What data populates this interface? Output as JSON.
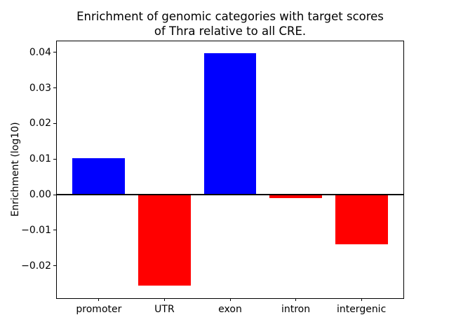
{
  "chart_data": {
    "type": "bar",
    "title": "Enrichment of genomic categories with target scores\nof Thra relative to all CRE.",
    "ylabel": "Enrichment (log10)",
    "xlabel": "",
    "categories": [
      "promoter",
      "UTR",
      "exon",
      "intron",
      "intergenic"
    ],
    "values": [
      0.0103,
      -0.0256,
      0.0398,
      -0.001,
      -0.0139
    ],
    "positive_color": "#0000ff",
    "negative_color": "#ff0000",
    "yticks": [
      0.04,
      0.03,
      0.02,
      0.01,
      0,
      -0.01,
      -0.02
    ],
    "ytick_labels": [
      "0.04",
      "0.03",
      "0.02",
      "0.01",
      "0.00",
      "−0.01",
      "−0.02"
    ],
    "ylim": [
      -0.0291,
      0.0431
    ],
    "xlim": [
      -0.64,
      4.64
    ],
    "bar_width": 0.8,
    "zero_line": true,
    "grid": false,
    "legend": "none",
    "axis_color": "#000000",
    "background": "#ffffff"
  }
}
